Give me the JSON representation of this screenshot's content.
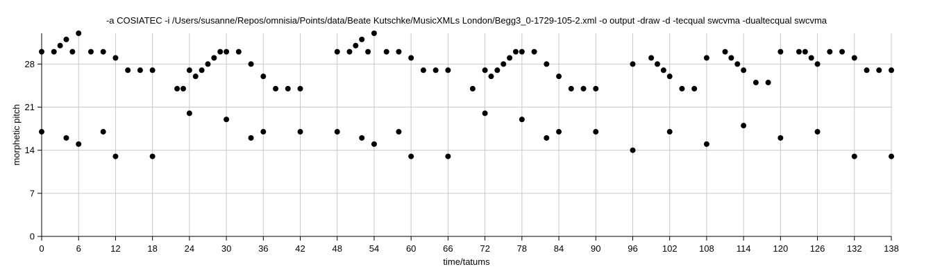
{
  "chart_data": {
    "type": "scatter",
    "title": "-a COSIATEC -i /Users/susanne/Repos/omnisia/Points/data/Beate Kutschke/MusicXMLs London/Begg3_0-1729-105-2.xml -o output -draw -d -tecqual swcvma -dualtecqual swcvma",
    "xlabel": "time/tatums",
    "ylabel": "morphetic pitch",
    "xlim": [
      0,
      138
    ],
    "ylim": [
      0,
      33
    ],
    "xticks": [
      0,
      6,
      12,
      18,
      24,
      30,
      36,
      42,
      48,
      54,
      60,
      66,
      72,
      78,
      84,
      90,
      96,
      102,
      108,
      114,
      120,
      126,
      132,
      138
    ],
    "yticks": [
      0,
      7,
      14,
      21,
      28
    ],
    "grid": true,
    "marker_color": "#000000",
    "grid_color": "#c8c8c8",
    "points": [
      [
        0,
        30
      ],
      [
        0,
        17
      ],
      [
        2,
        30
      ],
      [
        3,
        31
      ],
      [
        4,
        32
      ],
      [
        4,
        16
      ],
      [
        5,
        30
      ],
      [
        6,
        33
      ],
      [
        6,
        15
      ],
      [
        8,
        30
      ],
      [
        10,
        30
      ],
      [
        10,
        17
      ],
      [
        12,
        29
      ],
      [
        12,
        13
      ],
      [
        14,
        27
      ],
      [
        16,
        27
      ],
      [
        18,
        27
      ],
      [
        18,
        13
      ],
      [
        22,
        24
      ],
      [
        23,
        24
      ],
      [
        24,
        27
      ],
      [
        24,
        20
      ],
      [
        25,
        26
      ],
      [
        26,
        27
      ],
      [
        27,
        28
      ],
      [
        28,
        29
      ],
      [
        29,
        30
      ],
      [
        30,
        30
      ],
      [
        30,
        19
      ],
      [
        32,
        30
      ],
      [
        34,
        28
      ],
      [
        34,
        16
      ],
      [
        36,
        26
      ],
      [
        36,
        17
      ],
      [
        38,
        24
      ],
      [
        40,
        24
      ],
      [
        42,
        24
      ],
      [
        42,
        17
      ],
      [
        48,
        30
      ],
      [
        48,
        17
      ],
      [
        50,
        30
      ],
      [
        51,
        31
      ],
      [
        52,
        32
      ],
      [
        52,
        16
      ],
      [
        53,
        30
      ],
      [
        54,
        33
      ],
      [
        54,
        15
      ],
      [
        56,
        30
      ],
      [
        58,
        30
      ],
      [
        58,
        17
      ],
      [
        60,
        29
      ],
      [
        60,
        13
      ],
      [
        62,
        27
      ],
      [
        64,
        27
      ],
      [
        66,
        27
      ],
      [
        66,
        13
      ],
      [
        70,
        24
      ],
      [
        72,
        27
      ],
      [
        72,
        20
      ],
      [
        73,
        26
      ],
      [
        74,
        27
      ],
      [
        75,
        28
      ],
      [
        76,
        29
      ],
      [
        77,
        30
      ],
      [
        78,
        30
      ],
      [
        78,
        19
      ],
      [
        80,
        30
      ],
      [
        82,
        28
      ],
      [
        82,
        16
      ],
      [
        84,
        26
      ],
      [
        84,
        17
      ],
      [
        86,
        24
      ],
      [
        88,
        24
      ],
      [
        90,
        24
      ],
      [
        90,
        17
      ],
      [
        96,
        28
      ],
      [
        96,
        14
      ],
      [
        99,
        29
      ],
      [
        100,
        28
      ],
      [
        101,
        27
      ],
      [
        102,
        26
      ],
      [
        102,
        17
      ],
      [
        104,
        24
      ],
      [
        106,
        24
      ],
      [
        108,
        29
      ],
      [
        108,
        15
      ],
      [
        111,
        30
      ],
      [
        112,
        29
      ],
      [
        113,
        28
      ],
      [
        114,
        27
      ],
      [
        114,
        18
      ],
      [
        116,
        25
      ],
      [
        118,
        25
      ],
      [
        120,
        30
      ],
      [
        120,
        16
      ],
      [
        123,
        30
      ],
      [
        124,
        30
      ],
      [
        125,
        29
      ],
      [
        126,
        28
      ],
      [
        126,
        17
      ],
      [
        128,
        30
      ],
      [
        130,
        30
      ],
      [
        132,
        29
      ],
      [
        132,
        13
      ],
      [
        134,
        27
      ],
      [
        136,
        27
      ],
      [
        138,
        27
      ],
      [
        138,
        13
      ]
    ]
  }
}
